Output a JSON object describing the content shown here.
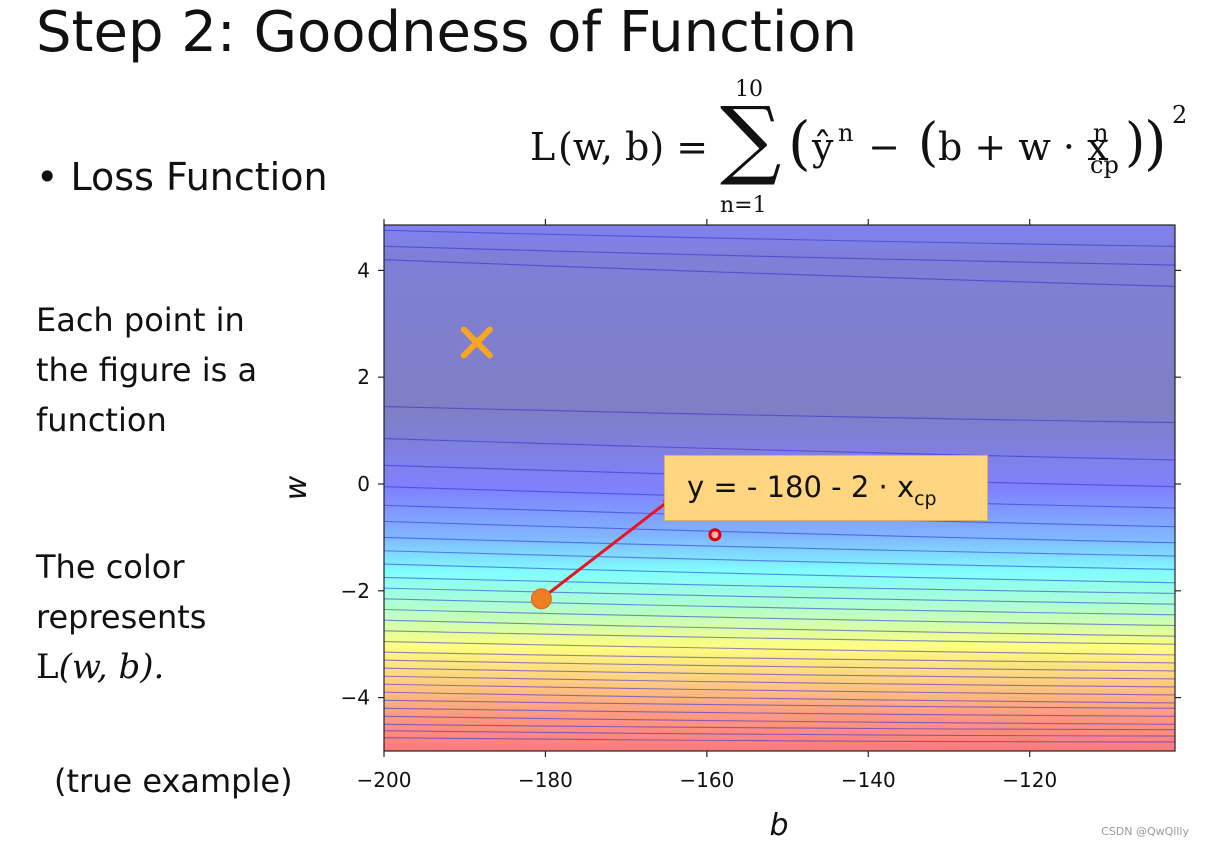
{
  "slide": {
    "title": "Step 2: Goodness of Function",
    "bullet_symbol": "•",
    "bullet_text": "Loss Function",
    "note1_lines": [
      "Each point in",
      "the figure is a",
      "function"
    ],
    "note2_lines": [
      "The color",
      "represents"
    ],
    "note2_math_L": "L",
    "note2_math_args": "(w, b).",
    "note3": "(true example)",
    "watermark": "CSDN @QwQllly"
  },
  "formula": {
    "lhs_L": "L",
    "lhs_args": "(w, b) =",
    "sum_symbol": "∑",
    "sum_top": "10",
    "sum_bottom": "n=1",
    "lparen": "(",
    "yhat": "ŷ",
    "sup_n": "n",
    "minus": " − ",
    "inner_lparen": "(",
    "b_plus_w": "b + w · x",
    "x_sup": "n",
    "x_sub": "cp",
    "inner_rparen": ")",
    "rparen": ")",
    "power": "2"
  },
  "annotation": {
    "prefix": "y = - 180 - 2 · x",
    "subscript": "cp",
    "box_color": "#ffd580",
    "arrow_color": "#e8141e"
  },
  "chart_data": {
    "type": "contour",
    "title": "",
    "xlabel": "b",
    "ylabel": "w",
    "xlim": [
      -200,
      -102
    ],
    "ylim": [
      -5,
      4.85
    ],
    "xticks": [
      -200,
      -180,
      -160,
      -140,
      -120
    ],
    "xtick_labels": [
      "−200",
      "−180",
      "−160",
      "−140",
      "−120"
    ],
    "yticks": [
      4,
      2,
      0,
      -2,
      -4
    ],
    "ytick_labels": [
      "4",
      "2",
      "0",
      "−2",
      "−4"
    ],
    "colormap": "jet",
    "color_represents": "L(w, b)",
    "markers": [
      {
        "name": "x-marker",
        "shape": "x",
        "b": -188.5,
        "w": 2.65,
        "color": "#f5a623"
      },
      {
        "name": "orange-dot",
        "shape": "circle",
        "b": -180.5,
        "w": -2.15,
        "color": "#ef7d22"
      },
      {
        "name": "red-ring",
        "shape": "ring",
        "b": -159,
        "w": -0.95,
        "color": "#e00000"
      }
    ],
    "arrow": {
      "from_b": -180.5,
      "from_w": -2.15,
      "to_b": -164.6,
      "to_w": -0.3
    },
    "contour_lines": [
      {
        "w_left": 4.75,
        "w_right": 4.45
      },
      {
        "w_left": 4.45,
        "w_right": 4.1
      },
      {
        "w_left": 4.2,
        "w_right": 3.7
      },
      {
        "w_left": 1.45,
        "w_right": 1.15
      },
      {
        "w_left": 0.85,
        "w_right": 0.45
      },
      {
        "w_left": 0.35,
        "w_right": -0.05
      },
      {
        "w_left": -0.05,
        "w_right": -0.45
      },
      {
        "w_left": -0.4,
        "w_right": -0.8
      },
      {
        "w_left": -0.7,
        "w_right": -1.1
      },
      {
        "w_left": -1.0,
        "w_right": -1.35
      },
      {
        "w_left": -1.25,
        "w_right": -1.6
      },
      {
        "w_left": -1.5,
        "w_right": -1.85
      },
      {
        "w_left": -1.75,
        "w_right": -2.05
      },
      {
        "w_left": -1.95,
        "w_right": -2.25
      },
      {
        "w_left": -2.15,
        "w_right": -2.45
      },
      {
        "w_left": -2.35,
        "w_right": -2.65
      },
      {
        "w_left": -2.55,
        "w_right": -2.85
      },
      {
        "w_left": -2.75,
        "w_right": -3.0
      },
      {
        "w_left": -2.95,
        "w_right": -3.2
      },
      {
        "w_left": -3.15,
        "w_right": -3.35
      },
      {
        "w_left": -3.3,
        "w_right": -3.5
      },
      {
        "w_left": -3.45,
        "w_right": -3.65
      },
      {
        "w_left": -3.6,
        "w_right": -3.8
      },
      {
        "w_left": -3.75,
        "w_right": -3.95
      },
      {
        "w_left": -3.9,
        "w_right": -4.1
      },
      {
        "w_left": -4.05,
        "w_right": -4.2
      },
      {
        "w_left": -4.2,
        "w_right": -4.35
      },
      {
        "w_left": -4.35,
        "w_right": -4.5
      },
      {
        "w_left": -4.5,
        "w_right": -4.6
      },
      {
        "w_left": -4.62,
        "w_right": -4.72
      },
      {
        "w_left": -4.75,
        "w_right": -4.83
      }
    ]
  }
}
